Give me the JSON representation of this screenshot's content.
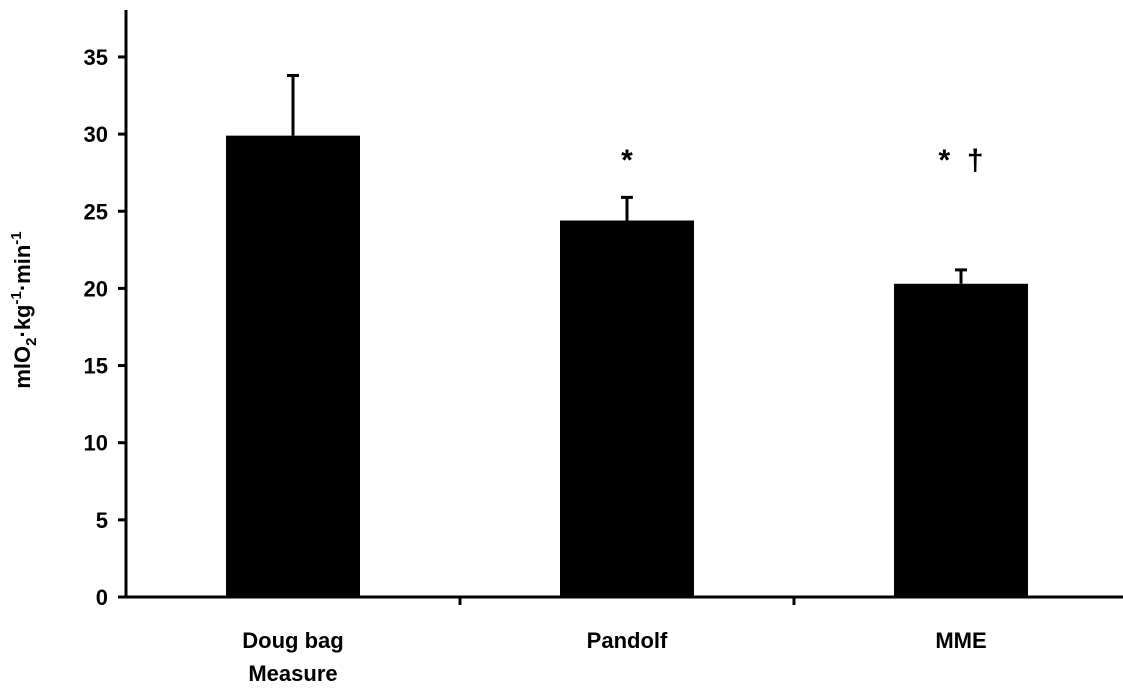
{
  "chart_data": {
    "type": "bar",
    "title": "",
    "xlabel": "",
    "ylabel": {
      "base1": "mlO",
      "sub": "2",
      "base2": "·kg",
      "sup1": "-1",
      "base3": "·min",
      "sup2": "-1"
    },
    "ylim": [
      0,
      35
    ],
    "yticks": [
      0,
      5,
      10,
      15,
      20,
      25,
      30,
      35
    ],
    "categories": [
      {
        "lines": [
          "Doug bag",
          "Measure"
        ]
      },
      {
        "lines": [
          "Pandolf"
        ]
      },
      {
        "lines": [
          "MME"
        ]
      }
    ],
    "values": [
      29.9,
      24.4,
      20.3
    ],
    "errors": [
      3.9,
      1.5,
      0.9
    ],
    "annotations": [
      "",
      "*",
      "* †"
    ],
    "bar_color": "#000000",
    "grid": false,
    "legend": false
  }
}
